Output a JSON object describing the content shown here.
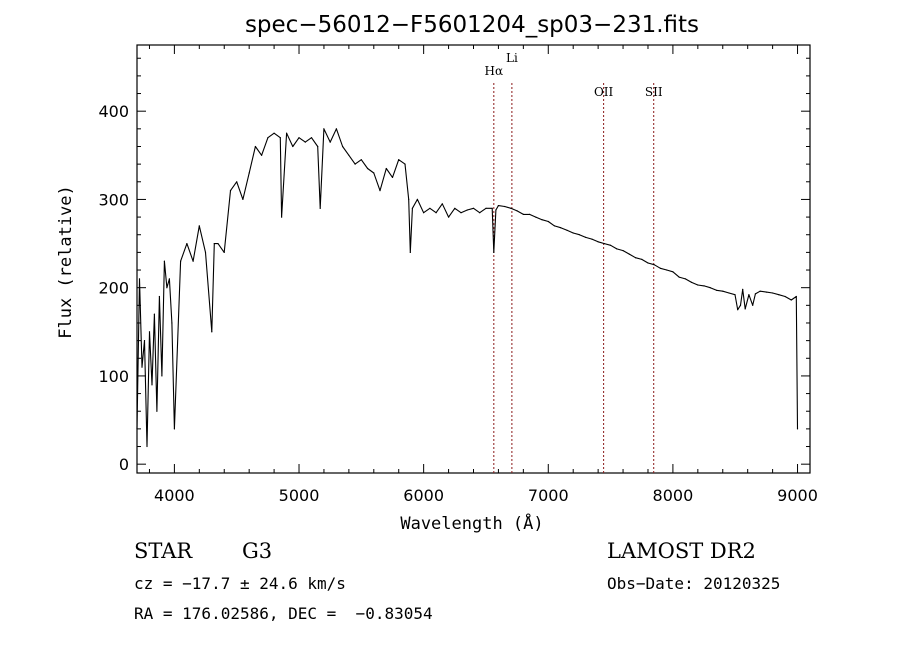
{
  "chart_data": {
    "type": "line",
    "title": "spec−56012−F5601204_sp03−231.fits",
    "xlabel": "Wavelength (Å)",
    "ylabel": "Flux (relative)",
    "xlim": [
      3700,
      9100
    ],
    "ylim": [
      -10,
      475
    ],
    "xticks": [
      4000,
      5000,
      6000,
      7000,
      8000,
      9000
    ],
    "yticks": [
      0,
      100,
      200,
      300,
      400
    ],
    "grid": false,
    "lines": [
      {
        "label": "Hα",
        "x": 6563
      },
      {
        "label": "Li",
        "x": 6708
      },
      {
        "label": "OII",
        "x": 7444
      },
      {
        "label": "SII",
        "x": 7846
      }
    ],
    "series": [
      {
        "x": [
          3700,
          3720,
          3740,
          3760,
          3780,
          3800,
          3820,
          3840,
          3860,
          3880,
          3900,
          3920,
          3940,
          3960,
          3980,
          4000,
          4050,
          4100,
          4150,
          4200,
          4250,
          4300,
          4320,
          4350,
          4400,
          4450,
          4500,
          4550,
          4600,
          4650,
          4700,
          4750,
          4800,
          4850,
          4860,
          4900,
          4950,
          5000,
          5050,
          5100,
          5150,
          5170,
          5200,
          5250,
          5300,
          5350,
          5400,
          5450,
          5500,
          5550,
          5600,
          5650,
          5700,
          5750,
          5800,
          5850,
          5880,
          5893,
          5910,
          5950,
          6000,
          6050,
          6100,
          6150,
          6200,
          6250,
          6300,
          6350,
          6400,
          6450,
          6500,
          6550,
          6563,
          6580,
          6600,
          6650,
          6700,
          6750,
          6800,
          6850,
          6900,
          6950,
          7000,
          7050,
          7100,
          7150,
          7200,
          7250,
          7300,
          7350,
          7400,
          7450,
          7500,
          7550,
          7600,
          7650,
          7700,
          7750,
          7800,
          7850,
          7900,
          7950,
          8000,
          8050,
          8100,
          8150,
          8200,
          8250,
          8300,
          8350,
          8400,
          8450,
          8498,
          8520,
          8542,
          8560,
          8580,
          8610,
          8640,
          8662,
          8700,
          8750,
          8800,
          8850,
          8900,
          8950,
          8990,
          9000
        ],
        "values": [
          40,
          210,
          110,
          140,
          20,
          150,
          90,
          170,
          60,
          190,
          100,
          230,
          200,
          210,
          160,
          40,
          230,
          250,
          230,
          270,
          240,
          150,
          250,
          250,
          240,
          310,
          320,
          300,
          330,
          360,
          350,
          370,
          375,
          370,
          280,
          375,
          360,
          370,
          365,
          370,
          360,
          290,
          380,
          365,
          380,
          360,
          350,
          340,
          345,
          335,
          330,
          310,
          335,
          325,
          345,
          340,
          300,
          240,
          290,
          300,
          285,
          290,
          285,
          295,
          280,
          290,
          285,
          288,
          290,
          285,
          290,
          290,
          240,
          288,
          293,
          292,
          290,
          287,
          283,
          283,
          280,
          277,
          275,
          270,
          268,
          265,
          262,
          260,
          257,
          255,
          252,
          250,
          248,
          244,
          242,
          238,
          234,
          232,
          228,
          226,
          222,
          220,
          218,
          212,
          210,
          206,
          203,
          202,
          200,
          197,
          196,
          194,
          192,
          175,
          180,
          198,
          176,
          192,
          180,
          193,
          196,
          195,
          194,
          192,
          190,
          186,
          190,
          40
        ]
      }
    ]
  },
  "info": {
    "class_label": "STAR",
    "subclass": "G3",
    "survey": "LAMOST DR2",
    "cz": "cz = −17.7 ± 24.6 km/s",
    "obs_date": "Obs−Date: 20120325",
    "coords": "RA = 176.02586, DEC =  −0.83054"
  }
}
